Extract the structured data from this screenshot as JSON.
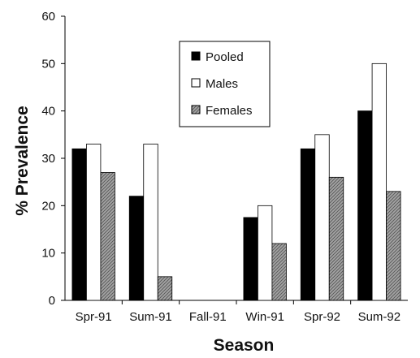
{
  "chart_data": {
    "type": "bar",
    "categories": [
      "Spr-91",
      "Sum-91",
      "Fall-91",
      "Win-91",
      "Spr-92",
      "Sum-92"
    ],
    "series": [
      {
        "name": "Pooled",
        "values": [
          32,
          22,
          null,
          17.5,
          32,
          40
        ],
        "color": "#000000",
        "fill": "solid"
      },
      {
        "name": "Males",
        "values": [
          33,
          33,
          null,
          20,
          35,
          50
        ],
        "color": "#ffffff",
        "fill": "solid"
      },
      {
        "name": "Females",
        "values": [
          27,
          5,
          null,
          12,
          26,
          23
        ],
        "color": "#9a9a9a",
        "fill": "hatched"
      }
    ],
    "xlabel": "Season",
    "ylabel": "% Prevalence",
    "ylim": [
      0,
      60
    ],
    "yticks": [
      "0",
      "10",
      "20",
      "30",
      "40",
      "50",
      "60"
    ],
    "grid": false,
    "legend_position": "top-center"
  }
}
